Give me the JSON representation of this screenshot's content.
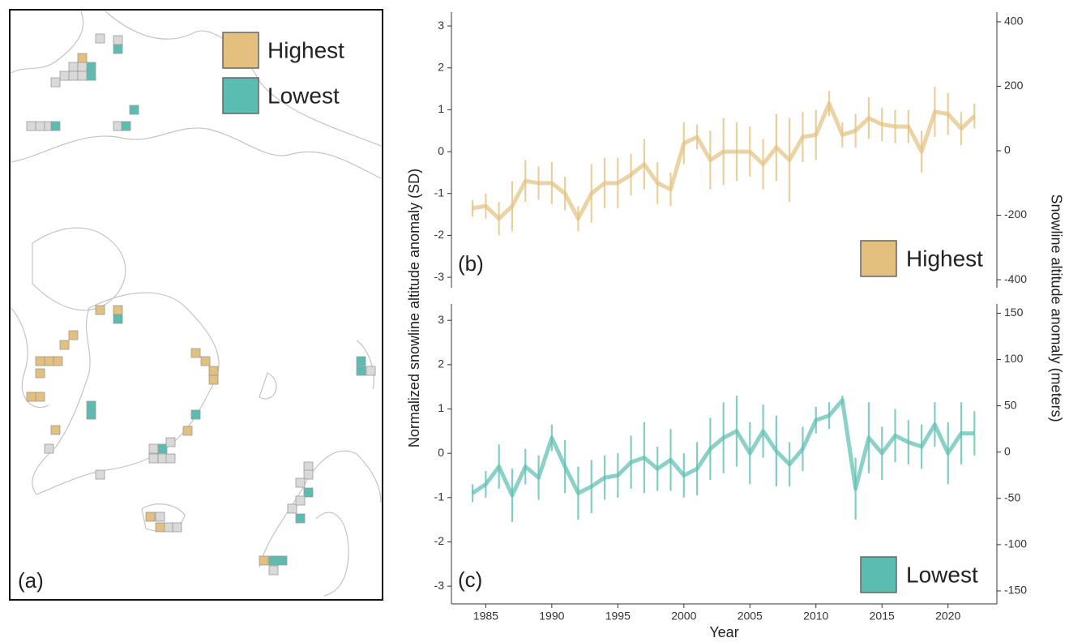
{
  "map": {
    "panel_label": "(a)",
    "legend": [
      {
        "label": "Highest",
        "color": "#e3c07d"
      },
      {
        "label": "Lowest",
        "color": "#5bbdb1"
      }
    ]
  },
  "chart_data": [
    {
      "type": "line",
      "panel_label": "(b)",
      "ylabel": "Normalized snowline altitude anomaly (SD)",
      "y2label": "Snowline altitude anomaly (meters)",
      "x": [
        1984,
        1985,
        1986,
        1987,
        1988,
        1989,
        1990,
        1991,
        1992,
        1993,
        1994,
        1995,
        1996,
        1997,
        1998,
        1999,
        2000,
        2001,
        2002,
        2003,
        2004,
        2005,
        2006,
        2007,
        2008,
        2009,
        2010,
        2011,
        2012,
        2013,
        2014,
        2015,
        2016,
        2017,
        2018,
        2019,
        2020,
        2021,
        2022
      ],
      "xlim": [
        1982.4,
        2023.7
      ],
      "ylim": [
        -3.25,
        3.33
      ],
      "yticks": [
        -3,
        -2,
        -1,
        0,
        1,
        2,
        3
      ],
      "y2lim": [
        -425,
        430
      ],
      "y2ticks": [
        -400,
        -200,
        0,
        200,
        400
      ],
      "legend": "lower right",
      "series": [
        {
          "name": "Highest",
          "color": "#e3c07d",
          "values": [
            -1.35,
            -1.3,
            -1.6,
            -1.3,
            -0.7,
            -0.75,
            -0.75,
            -1.0,
            -1.6,
            -1.0,
            -0.75,
            -0.75,
            -0.55,
            -0.3,
            -0.75,
            -0.9,
            0.2,
            0.35,
            -0.2,
            0.0,
            0.0,
            0.0,
            -0.3,
            0.1,
            -0.2,
            0.35,
            0.4,
            1.15,
            0.4,
            0.5,
            0.8,
            0.65,
            0.6,
            0.6,
            0.0,
            0.95,
            0.9,
            0.55,
            0.85
          ],
          "errors": [
            0.2,
            0.3,
            0.4,
            0.6,
            0.5,
            0.4,
            0.5,
            0.4,
            0.3,
            0.7,
            0.6,
            0.6,
            0.5,
            0.6,
            0.5,
            0.4,
            0.5,
            0.3,
            0.7,
            0.8,
            0.7,
            0.6,
            0.6,
            0.8,
            1.0,
            0.6,
            0.6,
            0.3,
            0.3,
            0.4,
            0.5,
            0.4,
            0.4,
            0.4,
            0.5,
            0.6,
            0.5,
            0.4,
            0.3
          ]
        }
      ]
    },
    {
      "type": "line",
      "panel_label": "(c)",
      "xlabel": "Year",
      "x": [
        1984,
        1985,
        1986,
        1987,
        1988,
        1989,
        1990,
        1991,
        1992,
        1993,
        1994,
        1995,
        1996,
        1997,
        1998,
        1999,
        2000,
        2001,
        2002,
        2003,
        2004,
        2005,
        2006,
        2007,
        2008,
        2009,
        2010,
        2011,
        2012,
        2013,
        2014,
        2015,
        2016,
        2017,
        2018,
        2019,
        2020,
        2021,
        2022
      ],
      "xlim": [
        1982.4,
        2023.7
      ],
      "xticks": [
        1985,
        1990,
        1995,
        2000,
        2005,
        2010,
        2015,
        2020
      ],
      "ylim": [
        -3.4,
        3.37
      ],
      "yticks": [
        -3,
        -2,
        -1,
        0,
        1,
        2,
        3
      ],
      "y2lim": [
        -164,
        160
      ],
      "y2ticks": [
        -150,
        -100,
        -50,
        0,
        50,
        100,
        150
      ],
      "legend": "lower right",
      "series": [
        {
          "name": "Lowest",
          "color": "#5bbdb1",
          "values": [
            -0.9,
            -0.7,
            -0.3,
            -0.95,
            -0.3,
            -0.55,
            0.35,
            -0.3,
            -0.9,
            -0.75,
            -0.55,
            -0.5,
            -0.2,
            -0.1,
            -0.35,
            -0.15,
            -0.5,
            -0.35,
            0.1,
            0.35,
            0.5,
            0.0,
            0.5,
            0.05,
            -0.25,
            0.1,
            0.75,
            0.85,
            1.2,
            -0.8,
            0.35,
            0.0,
            0.4,
            0.25,
            0.15,
            0.65,
            0.0,
            0.45,
            0.45
          ],
          "errors": [
            0.2,
            0.3,
            0.5,
            0.6,
            0.4,
            0.5,
            0.3,
            0.6,
            0.6,
            0.6,
            0.5,
            0.5,
            0.6,
            0.8,
            0.5,
            0.7,
            0.5,
            0.6,
            0.7,
            0.8,
            0.8,
            0.7,
            0.6,
            0.8,
            0.5,
            0.5,
            0.3,
            0.3,
            0.1,
            0.7,
            0.8,
            0.6,
            0.6,
            0.5,
            0.5,
            0.5,
            0.7,
            0.7,
            0.5
          ]
        }
      ]
    }
  ]
}
